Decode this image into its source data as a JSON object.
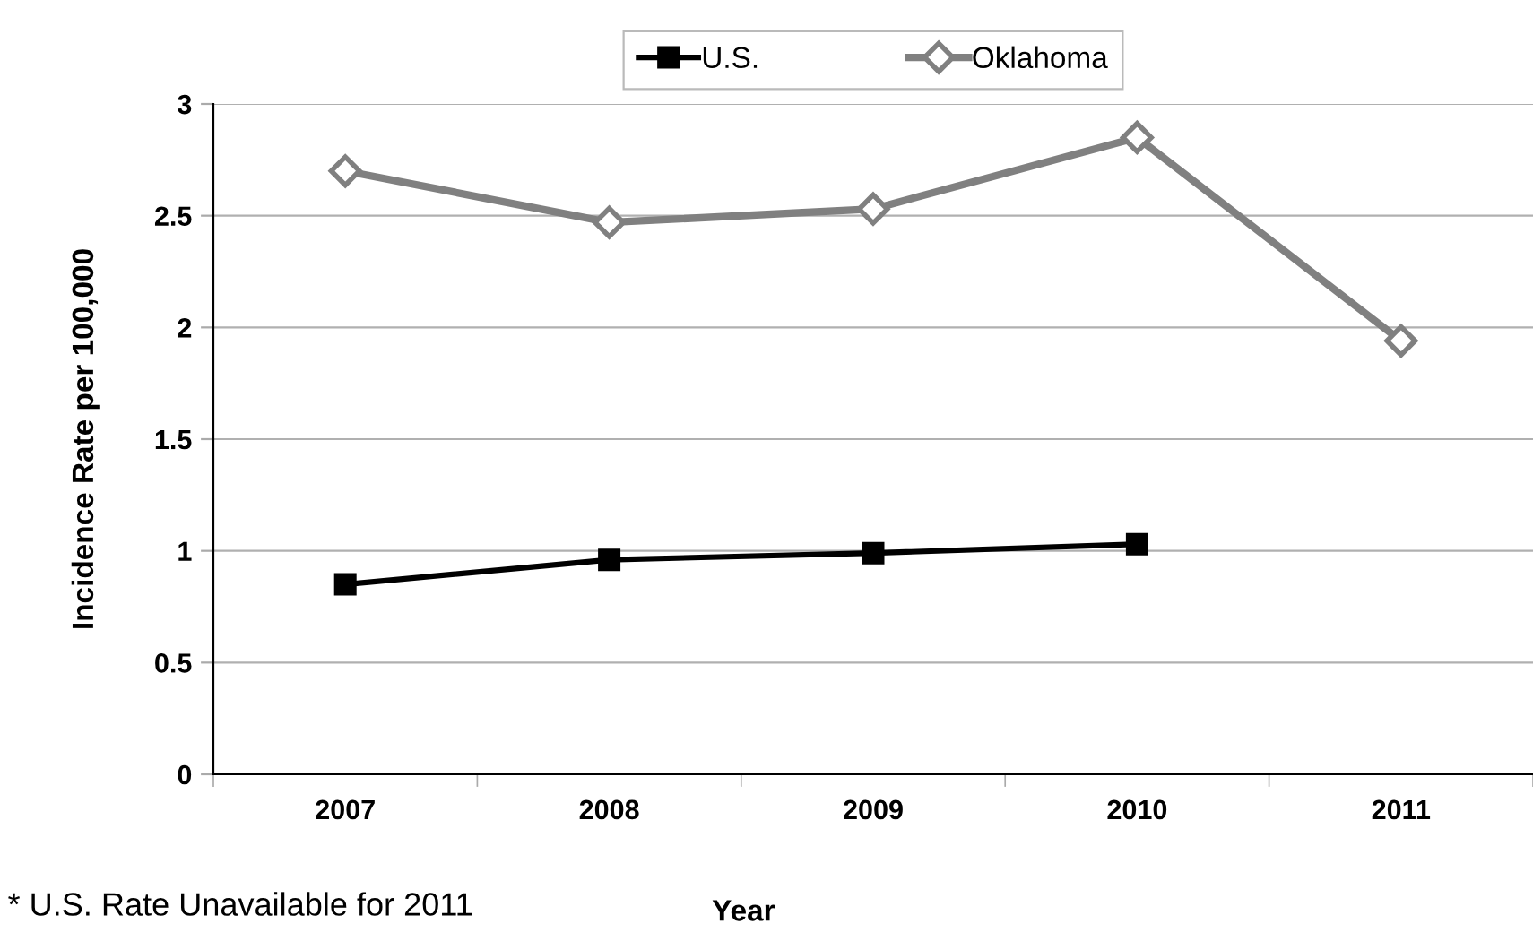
{
  "chart_data": {
    "type": "line",
    "xlabel": "Year",
    "ylabel": "Incidence Rate per 100,000",
    "categories": [
      "2007",
      "2008",
      "2009",
      "2010",
      "2011"
    ],
    "series": [
      {
        "name": "U.S.",
        "color": "#000000",
        "marker": "square",
        "values": [
          0.85,
          0.96,
          0.99,
          1.03,
          null
        ]
      },
      {
        "name": "Oklahoma",
        "color": "#808080",
        "marker": "diamond",
        "values": [
          2.7,
          2.47,
          2.53,
          2.85,
          1.94
        ]
      }
    ],
    "ylim": [
      0,
      3
    ],
    "yticks": [
      0,
      0.5,
      1,
      1.5,
      2,
      2.5,
      3
    ],
    "grid": "y",
    "legend": "top",
    "annotations": [
      "* U.S. Rate Unavailable for 2011"
    ]
  }
}
